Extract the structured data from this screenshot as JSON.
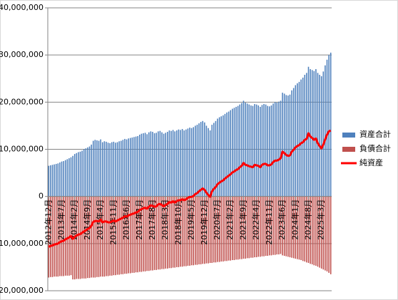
{
  "chart_data": {
    "type": "bar",
    "categories": [
      "2012年12月",
      null,
      null,
      null,
      null,
      null,
      null,
      "2013年7月",
      null,
      null,
      null,
      null,
      null,
      null,
      "2014年2月",
      null,
      null,
      null,
      null,
      null,
      null,
      "2014年9月",
      null,
      null,
      null,
      null,
      null,
      null,
      "2015年4月",
      null,
      null,
      null,
      null,
      null,
      null,
      "2015年11月",
      null,
      null,
      null,
      null,
      null,
      null,
      "2016年6月",
      null,
      null,
      null,
      null,
      null,
      null,
      "2017年1月",
      null,
      null,
      null,
      null,
      null,
      null,
      "2017年8月",
      null,
      null,
      null,
      null,
      null,
      null,
      "2018年3月",
      null,
      null,
      null,
      null,
      null,
      null,
      "2018年10月",
      null,
      null,
      null,
      null,
      null,
      null,
      "2019年5月",
      null,
      null,
      null,
      null,
      null,
      null,
      "2019年12月",
      null,
      null,
      null,
      null,
      null,
      null,
      "2020年7月",
      null,
      null,
      null,
      null,
      null,
      null,
      "2021年2月",
      null,
      null,
      null,
      null,
      null,
      null,
      "2021年9月",
      null,
      null,
      null,
      null,
      null,
      null,
      "2022年4月",
      null,
      null,
      null,
      null,
      null,
      null,
      "2022年11月",
      null,
      null,
      null,
      null,
      null,
      null,
      "2023年6月",
      null,
      null,
      null,
      null,
      null,
      null,
      "2024年1月",
      null,
      null,
      null,
      null,
      null,
      null,
      "2024年8月",
      null,
      null,
      null,
      null,
      null,
      null,
      "2025年3月",
      null,
      null,
      null,
      null,
      null
    ],
    "series": [
      {
        "name": "資産合計",
        "type": "bar",
        "color": "#4f81bd",
        "values": [
          6500000,
          6600000,
          6700000,
          6800000,
          6900000,
          7000000,
          7200000,
          7400000,
          7500000,
          7700000,
          7900000,
          8100000,
          8300000,
          8600000,
          9000000,
          9200000,
          9400000,
          9500000,
          9700000,
          10000000,
          10200000,
          10400000,
          10600000,
          11000000,
          11800000,
          12000000,
          11900000,
          11800000,
          12100000,
          11500000,
          11700000,
          11600000,
          11400000,
          11300000,
          11500000,
          11600000,
          11400000,
          11500000,
          11700000,
          11800000,
          12000000,
          12200000,
          12100000,
          12300000,
          12400000,
          12500000,
          12600000,
          12700000,
          12800000,
          13100000,
          13300000,
          13400000,
          13500000,
          13200000,
          13600000,
          13800000,
          13700000,
          13400000,
          13500000,
          13800000,
          13900000,
          13600000,
          13300000,
          13500000,
          13700000,
          14000000,
          13900000,
          14100000,
          13800000,
          14000000,
          14200000,
          14100000,
          14300000,
          14000000,
          14200000,
          14400000,
          14600000,
          14500000,
          14700000,
          15000000,
          15200000,
          15500000,
          15800000,
          16000000,
          15700000,
          15000000,
          14500000,
          14000000,
          15200000,
          15600000,
          16000000,
          16500000,
          16800000,
          17000000,
          17200000,
          17500000,
          17800000,
          18000000,
          18300000,
          18600000,
          18800000,
          19000000,
          19200000,
          19500000,
          19800000,
          20300000,
          19900000,
          19700000,
          19500000,
          19300000,
          19200000,
          19600000,
          19500000,
          19300000,
          19000000,
          19400000,
          19600000,
          19500000,
          19200000,
          19100000,
          19300000,
          19700000,
          20000000,
          19900000,
          20100000,
          20300000,
          22000000,
          21800000,
          21500000,
          21400000,
          21600000,
          22500000,
          23000000,
          23600000,
          24000000,
          24300000,
          24800000,
          25200000,
          25800000,
          26200000,
          27500000,
          27000000,
          26800000,
          26600000,
          27000000,
          26200000,
          25800000,
          25500000,
          26500000,
          27800000,
          29000000,
          30000000,
          30500000
        ]
      },
      {
        "name": "負債合計",
        "type": "bar",
        "color": "#c0504d",
        "values": [
          -17200000,
          -17100000,
          -17100000,
          -17000000,
          -17000000,
          -17000000,
          -16900000,
          -16900000,
          -16900000,
          -16800000,
          -16800000,
          -16800000,
          -16700000,
          -17600000,
          -17600000,
          -17500000,
          -17500000,
          -17500000,
          -17400000,
          -17400000,
          -17400000,
          -17300000,
          -17300000,
          -17200000,
          -17200000,
          -17200000,
          -17100000,
          -17100000,
          -17000000,
          -17000000,
          -17000000,
          -16900000,
          -16900000,
          -16800000,
          -16800000,
          -16700000,
          -16700000,
          -16600000,
          -16600000,
          -16500000,
          -16500000,
          -16400000,
          -16400000,
          -16300000,
          -16300000,
          -16200000,
          -16200000,
          -16100000,
          -16100000,
          -16000000,
          -16000000,
          -15900000,
          -15900000,
          -15800000,
          -15800000,
          -15700000,
          -15700000,
          -15600000,
          -15600000,
          -15500000,
          -15500000,
          -15400000,
          -15400000,
          -15300000,
          -15300000,
          -15200000,
          -15200000,
          -15100000,
          -15100000,
          -15000000,
          -15000000,
          -14900000,
          -14900000,
          -14800000,
          -14800000,
          -14700000,
          -14700000,
          -14600000,
          -14600000,
          -14500000,
          -14500000,
          -14400000,
          -14400000,
          -14300000,
          -14300000,
          -14200000,
          -14200000,
          -14100000,
          -14100000,
          -14000000,
          -14000000,
          -13900000,
          -13900000,
          -13800000,
          -13800000,
          -13700000,
          -13700000,
          -13600000,
          -13600000,
          -13500000,
          -13500000,
          -13400000,
          -13400000,
          -13300000,
          -13300000,
          -13200000,
          -13200000,
          -13100000,
          -13100000,
          -13000000,
          -13000000,
          -12900000,
          -12900000,
          -12800000,
          -12800000,
          -12700000,
          -12700000,
          -12600000,
          -12600000,
          -12500000,
          -12500000,
          -12400000,
          -12400000,
          -12300000,
          -12300000,
          -12200000,
          -12500000,
          -12600000,
          -12700000,
          -12800000,
          -12900000,
          -13000000,
          -13100000,
          -13200000,
          -13300000,
          -13400000,
          -13500000,
          -13700000,
          -13800000,
          -14000000,
          -14100000,
          -14300000,
          -14400000,
          -14600000,
          -14700000,
          -14900000,
          -15100000,
          -15300000,
          -15500000,
          -15700000,
          -15900000,
          -16200000,
          -16500000
        ]
      },
      {
        "name": "純資産",
        "type": "line",
        "color": "#ff0000",
        "values": [
          -10700000,
          -10500000,
          -10400000,
          -10200000,
          -10100000,
          -10000000,
          -9700000,
          -9500000,
          -9400000,
          -9100000,
          -8900000,
          -8700000,
          -8400000,
          -9000000,
          -8600000,
          -8300000,
          -8100000,
          -8000000,
          -7700000,
          -7400000,
          -7200000,
          -6900000,
          -6700000,
          -6200000,
          -5400000,
          -5200000,
          -5200000,
          -5300000,
          -4900000,
          -5500000,
          -5300000,
          -5300000,
          -5500000,
          -5500000,
          -5300000,
          -5100000,
          -5300000,
          -5100000,
          -4900000,
          -4700000,
          -4500000,
          -4200000,
          -4300000,
          -4000000,
          -3900000,
          -3700000,
          -3600000,
          -3400000,
          -3300000,
          -2900000,
          -2700000,
          -2500000,
          -2400000,
          -2600000,
          -2200000,
          -1900000,
          -2000000,
          -2200000,
          -2100000,
          -1700000,
          -1600000,
          -1800000,
          -2100000,
          -1800000,
          -1600000,
          -1200000,
          -1300000,
          -1000000,
          -1300000,
          -1000000,
          -800000,
          -800000,
          -600000,
          -800000,
          -600000,
          -300000,
          -100000,
          -100000,
          100000,
          500000,
          700000,
          1100000,
          1400000,
          1700000,
          1400000,
          800000,
          300000,
          -100000,
          1100000,
          1600000,
          2000000,
          2600000,
          2900000,
          3200000,
          3400000,
          3800000,
          4100000,
          4400000,
          4700000,
          5100000,
          5300000,
          5600000,
          5800000,
          6200000,
          6500000,
          7100000,
          6700000,
          6600000,
          6400000,
          6300000,
          6200000,
          6700000,
          6600000,
          6500000,
          6200000,
          6700000,
          6900000,
          6900000,
          6600000,
          6600000,
          6800000,
          7300000,
          7600000,
          7600000,
          7800000,
          8100000,
          9500000,
          9200000,
          8800000,
          8600000,
          8700000,
          9500000,
          9900000,
          10400000,
          10700000,
          10900000,
          11300000,
          11500000,
          12000000,
          12200000,
          13400000,
          12700000,
          12400000,
          12000000,
          12300000,
          11300000,
          10700000,
          10200000,
          11000000,
          12100000,
          13100000,
          13800000,
          14000000
        ]
      }
    ],
    "ylim": [
      -20000000,
      40000000
    ],
    "yticks": [
      {
        "value": -20000000,
        "label": "-20,000,000"
      },
      {
        "value": -10000000,
        "label": "-10,000,000"
      },
      0,
      {
        "value": 10000000,
        "label": "10,000,000"
      },
      {
        "value": 20000000,
        "label": "20,000,000"
      },
      {
        "value": 30000000,
        "label": "30,000,000"
      },
      {
        "value": 40000000,
        "label": "40,000,000"
      }
    ],
    "grid": true,
    "legend": "right"
  }
}
